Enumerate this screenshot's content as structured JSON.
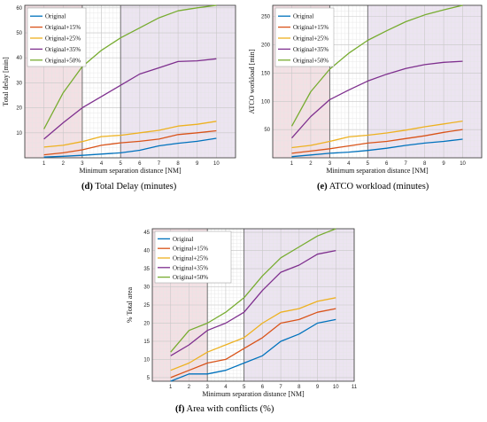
{
  "captions": {
    "d": {
      "letter": "(d)",
      "text": "Total Delay (minutes)"
    },
    "e": {
      "letter": "(e)",
      "text": "ATCO workload (minutes)"
    },
    "f": {
      "letter": "(f)",
      "text": "Area with conflicts (%)"
    }
  },
  "chart_data": [
    {
      "id": "d",
      "type": "line",
      "xlabel": "Minimum separation distance [NM]",
      "ylabel": "Total delay [min]",
      "xlim": [
        0,
        11
      ],
      "ylim": [
        0,
        61
      ],
      "xticks": [
        1,
        2,
        3,
        4,
        5,
        6,
        7,
        8,
        9,
        10
      ],
      "yticks": [
        10,
        20,
        30,
        40,
        50,
        60
      ],
      "regions": [
        {
          "from": 0,
          "to": 3,
          "color": "#f3e0e4"
        },
        {
          "from": 5,
          "to": 11,
          "color": "#ece4f1"
        }
      ],
      "region_lines": [
        3,
        5
      ],
      "grid": true,
      "legend": "top-left",
      "x": [
        1,
        2,
        3,
        4,
        5,
        6,
        7,
        8,
        9,
        10
      ],
      "series": [
        {
          "name": "Original",
          "color": "#0072bd",
          "values": [
            0.3,
            0.6,
            1.0,
            1.5,
            2.0,
            3.0,
            4.8,
            5.8,
            6.6,
            7.8
          ]
        },
        {
          "name": "Original+15%",
          "color": "#d95319",
          "values": [
            1.2,
            2.0,
            3.2,
            5.0,
            6.0,
            6.6,
            7.5,
            9.3,
            10.0,
            10.8
          ]
        },
        {
          "name": "Original+25%",
          "color": "#edb120",
          "values": [
            4.3,
            5.0,
            6.5,
            8.5,
            9.0,
            10.0,
            11.0,
            12.7,
            13.4,
            14.6
          ]
        },
        {
          "name": "Original+35%",
          "color": "#7e2f8e",
          "values": [
            7.5,
            14.0,
            20.0,
            24.5,
            29.0,
            33.5,
            36.0,
            38.5,
            38.8,
            39.6
          ]
        },
        {
          "name": "Original+50%",
          "color": "#77ac30",
          "values": [
            11.5,
            26.0,
            36.5,
            43.0,
            48.0,
            52.0,
            56.0,
            58.8,
            60.0,
            61.0
          ]
        }
      ]
    },
    {
      "id": "e",
      "type": "line",
      "xlabel": "Minimum separation distance [NM]",
      "ylabel": "ATCO workload [min]",
      "xlim": [
        0,
        11
      ],
      "ylim": [
        0,
        270
      ],
      "xticks": [
        1,
        2,
        3,
        4,
        5,
        6,
        7,
        8,
        9,
        10
      ],
      "yticks": [
        50,
        100,
        150,
        200,
        250
      ],
      "regions": [
        {
          "from": 0,
          "to": 3,
          "color": "#f3e0e4"
        },
        {
          "from": 5,
          "to": 11,
          "color": "#ece4f1"
        }
      ],
      "region_lines": [
        3,
        5
      ],
      "grid": true,
      "legend": "top-left",
      "x": [
        1,
        2,
        3,
        4,
        5,
        6,
        7,
        8,
        9,
        10
      ],
      "series": [
        {
          "name": "Original",
          "color": "#0072bd",
          "values": [
            2,
            5,
            8,
            10,
            13,
            17,
            22,
            26,
            29,
            33
          ]
        },
        {
          "name": "Original+15%",
          "color": "#d95319",
          "values": [
            8,
            12,
            16,
            21,
            26,
            29,
            34,
            39,
            45,
            50
          ]
        },
        {
          "name": "Original+25%",
          "color": "#edb120",
          "values": [
            18,
            22,
            29,
            37,
            40,
            44,
            49,
            55,
            60,
            65
          ]
        },
        {
          "name": "Original+35%",
          "color": "#7e2f8e",
          "values": [
            35,
            73,
            103,
            120,
            136,
            148,
            158,
            165,
            169,
            171
          ]
        },
        {
          "name": "Original+50%",
          "color": "#77ac30",
          "values": [
            56,
            117,
            157,
            185,
            208,
            225,
            241,
            253,
            262,
            270
          ]
        }
      ]
    },
    {
      "id": "f",
      "type": "line",
      "xlabel": "Minimum separation distance [NM]",
      "ylabel": "% Total area",
      "xlim": [
        0,
        11
      ],
      "ylim": [
        4,
        46
      ],
      "xticks": [
        1,
        2,
        3,
        4,
        5,
        6,
        7,
        8,
        9,
        10,
        11
      ],
      "yticks": [
        5,
        10,
        15,
        20,
        25,
        30,
        35,
        40,
        45
      ],
      "regions": [
        {
          "from": 0,
          "to": 3,
          "color": "#f3e0e4"
        },
        {
          "from": 5,
          "to": 11,
          "color": "#ece4f1"
        }
      ],
      "region_lines": [
        3,
        5
      ],
      "grid": true,
      "legend": "top-left",
      "x": [
        1,
        2,
        3,
        4,
        5,
        6,
        7,
        8,
        9,
        10
      ],
      "series": [
        {
          "name": "Original",
          "color": "#0072bd",
          "values": [
            4,
            6,
            6,
            7,
            9,
            11,
            15,
            17,
            20,
            21
          ]
        },
        {
          "name": "Original+15%",
          "color": "#d95319",
          "values": [
            5,
            7,
            9,
            10,
            13,
            16,
            20,
            21,
            23,
            24
          ]
        },
        {
          "name": "Original+25%",
          "color": "#edb120",
          "values": [
            7,
            9,
            12,
            14,
            16,
            20,
            23,
            24,
            26,
            27
          ]
        },
        {
          "name": "Original+35%",
          "color": "#7e2f8e",
          "values": [
            11,
            14,
            18,
            20,
            23,
            29,
            34,
            36,
            39,
            40
          ]
        },
        {
          "name": "Original+50%",
          "color": "#77ac30",
          "values": [
            12,
            18,
            20,
            23,
            27,
            33,
            38,
            41,
            44,
            46
          ]
        }
      ]
    }
  ]
}
